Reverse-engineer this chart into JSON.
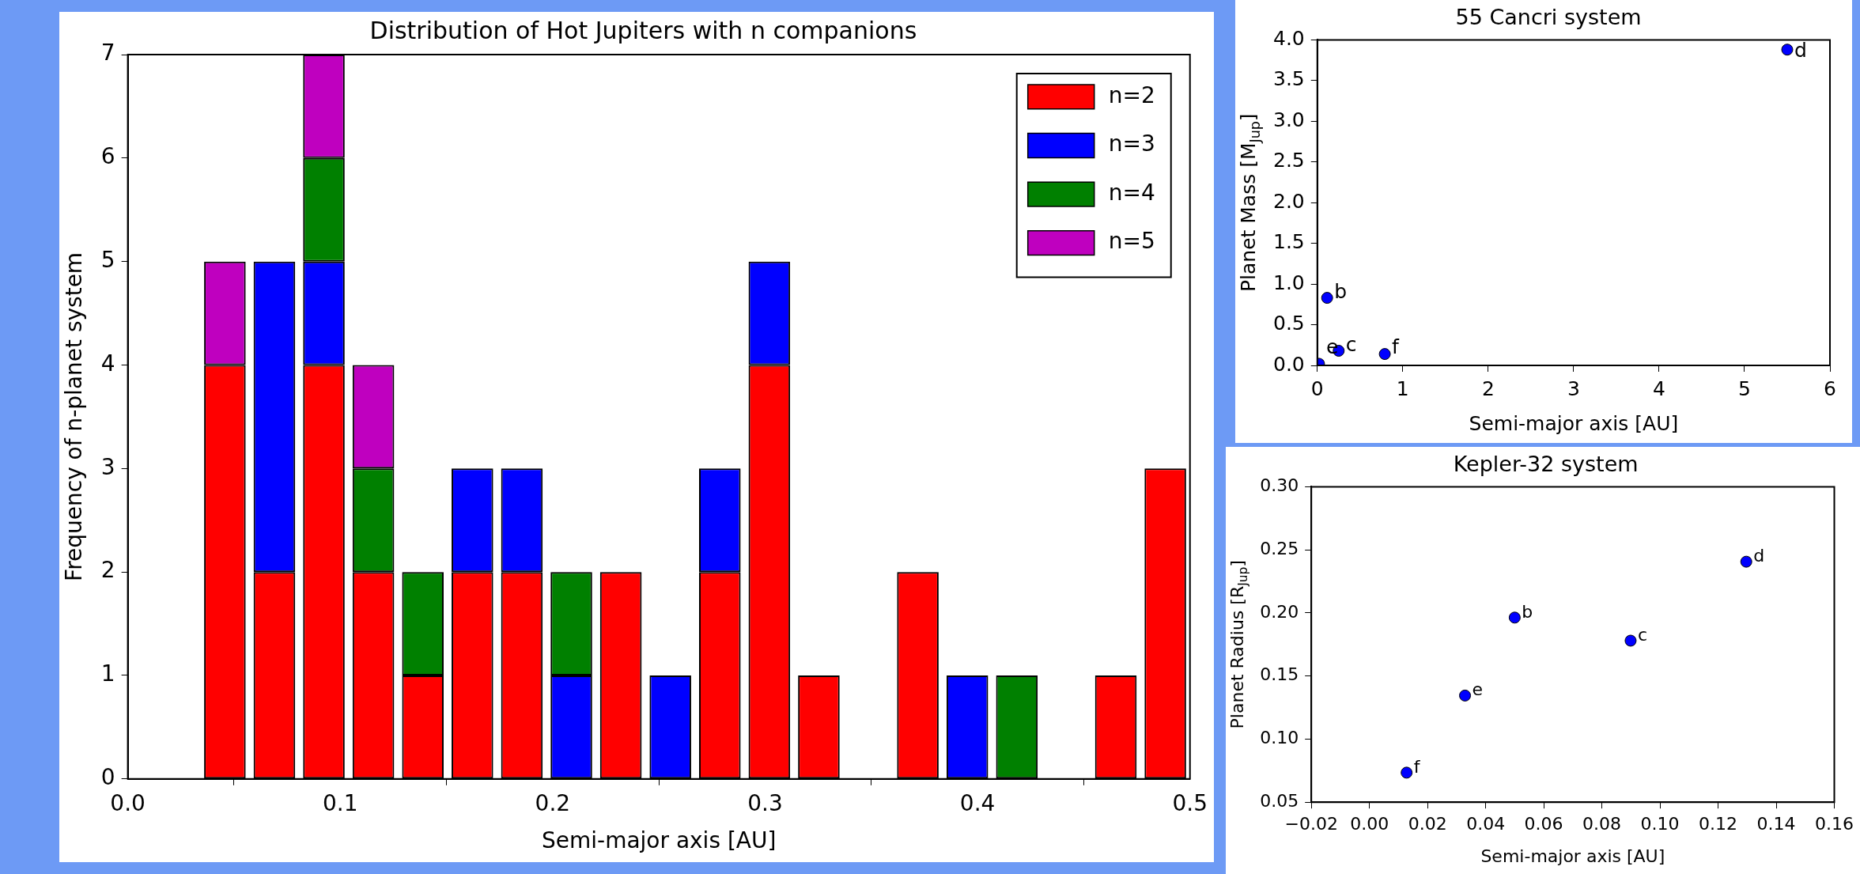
{
  "chart_data": [
    {
      "type": "bar",
      "title": "Distribution of Hot Jupiters with n companions",
      "xlabel": "Semi-major axis [AU]",
      "ylabel": "Frequency of n-planet system",
      "stacked": true,
      "legend": "top right",
      "grid": false,
      "x": [
        0.0457,
        0.069,
        0.0923,
        0.1156,
        0.1389,
        0.1622,
        0.1855,
        0.2088,
        0.2321,
        0.2554,
        0.2787,
        0.302,
        0.3253,
        0.3486,
        0.3719,
        0.3952,
        0.4185,
        0.4418,
        0.4651,
        0.4884
      ],
      "series": [
        {
          "name": "n=2",
          "color": "#ff0000",
          "values": [
            4,
            2,
            4,
            2,
            1,
            2,
            2,
            0,
            2,
            0,
            2,
            4,
            1,
            0,
            2,
            0,
            0,
            0,
            1,
            3
          ]
        },
        {
          "name": "n=3",
          "color": "#0000ff",
          "values": [
            0,
            3,
            1,
            0,
            0,
            1,
            1,
            1,
            0,
            1,
            1,
            1,
            0,
            0,
            0,
            1,
            0,
            0,
            0,
            0
          ]
        },
        {
          "name": "n=4",
          "color": "#008000",
          "values": [
            0,
            0,
            1,
            1,
            1,
            0,
            0,
            1,
            0,
            0,
            0,
            0,
            0,
            0,
            0,
            0,
            1,
            0,
            0,
            0
          ]
        },
        {
          "name": "n=5",
          "color": "#bf00bf",
          "values": [
            1,
            0,
            1,
            1,
            0,
            0,
            0,
            0,
            0,
            0,
            0,
            0,
            0,
            0,
            0,
            0,
            0,
            0,
            0,
            0
          ]
        }
      ],
      "xlim": [
        0,
        0.5
      ],
      "xticks": [
        {
          "value": 0,
          "label": "0.0"
        },
        0.1,
        0.2,
        0.3,
        0.4,
        0.5
      ],
      "ylim": [
        0,
        7
      ],
      "yticks": [
        0,
        1,
        2,
        3,
        4,
        5,
        6,
        7
      ]
    },
    {
      "type": "scatter",
      "title": "55 Cancri system",
      "xlabel": "Semi-major axis [AU]",
      "ylabel": "Planet Mass [M$_{Jup}$]",
      "grid": false,
      "marker": "circle",
      "color": "#0000ff",
      "x": [
        0.02,
        0.115,
        0.25,
        0.79,
        5.5
      ],
      "values": [
        0.02,
        0.83,
        0.18,
        0.14,
        3.88
      ],
      "xlim": [
        0,
        6
      ],
      "xticks": [
        0,
        1,
        2,
        3,
        4,
        5,
        6
      ],
      "ylim": [
        0,
        4
      ],
      "yticks": [
        {
          "value": 0,
          "label": "0.0"
        },
        0.5,
        {
          "value": 1,
          "label": "1.0"
        },
        1.5,
        {
          "value": 2,
          "label": "2.0"
        },
        2.5,
        {
          "value": 3,
          "label": "3.0"
        },
        3.5,
        {
          "value": 4,
          "label": "4.0"
        }
      ],
      "annotations": [
        {
          "text": "e",
          "x": 0.02,
          "y": 0.02
        },
        {
          "text": "b",
          "x": 0.115,
          "y": 0.83
        },
        {
          "text": "c",
          "x": 0.25,
          "y": 0.18
        },
        {
          "text": "f",
          "x": 0.79,
          "y": 0.14
        },
        {
          "text": "d",
          "x": 5.5,
          "y": 3.88
        }
      ]
    },
    {
      "type": "scatter",
      "title": "Kepler-32 system",
      "xlabel": "Semi-major axis [AU]",
      "ylabel": "Planet Radius [R$_{Jup}$]",
      "grid": false,
      "marker": "circle",
      "color": "#0000ff",
      "x": [
        0.0128,
        0.0329,
        0.05,
        0.0899,
        0.1297
      ],
      "values": [
        0.0734,
        0.1345,
        0.1963,
        0.178,
        0.2406
      ],
      "xlim": [
        -0.02,
        0.16
      ],
      "xticks": [
        {
          "value": -0.02,
          "label": "−0.02"
        },
        {
          "value": 0,
          "label": "0.00"
        },
        {
          "value": 0.02,
          "label": "0.02"
        },
        {
          "value": 0.04,
          "label": "0.04"
        },
        {
          "value": 0.06,
          "label": "0.06"
        },
        {
          "value": 0.08,
          "label": "0.08"
        },
        {
          "value": 0.1,
          "label": "0.10"
        },
        {
          "value": 0.12,
          "label": "0.12"
        },
        {
          "value": 0.14,
          "label": "0.14"
        },
        {
          "value": 0.16,
          "label": "0.16"
        }
      ],
      "ylim": [
        0.05,
        0.3
      ],
      "yticks": [
        0.05,
        {
          "value": 0.1,
          "label": "0.10"
        },
        0.15,
        {
          "value": 0.2,
          "label": "0.20"
        },
        0.25,
        {
          "value": 0.3,
          "label": "0.30"
        }
      ],
      "annotations": [
        {
          "text": "f",
          "x": 0.0128,
          "y": 0.0734
        },
        {
          "text": "e",
          "x": 0.0329,
          "y": 0.1345
        },
        {
          "text": "b",
          "x": 0.05,
          "y": 0.1963
        },
        {
          "text": "c",
          "x": 0.0899,
          "y": 0.178
        },
        {
          "text": "d",
          "x": 0.1297,
          "y": 0.2406
        }
      ]
    }
  ]
}
